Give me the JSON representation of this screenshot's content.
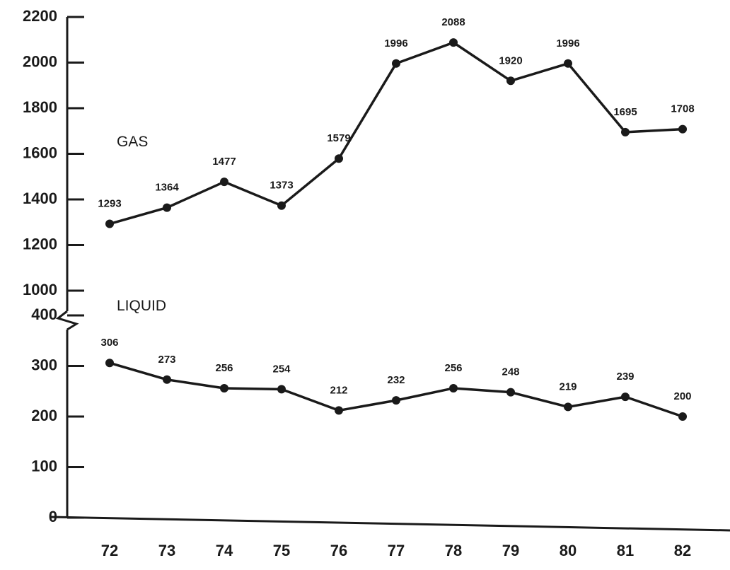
{
  "chart_data": {
    "type": "line",
    "categories": [
      "72",
      "73",
      "74",
      "75",
      "76",
      "77",
      "78",
      "79",
      "80",
      "81",
      "82"
    ],
    "series": [
      {
        "name": "GAS",
        "color": "#1a1a1a",
        "axis": "y2",
        "values": [
          1293,
          1364,
          1477,
          1373,
          1579,
          1996,
          2088,
          1920,
          1996,
          1695,
          1708
        ]
      },
      {
        "name": "LIQUID",
        "color": "#1a1a1a",
        "values": [
          306,
          273,
          256,
          254,
          212,
          232,
          256,
          248,
          219,
          239,
          200
        ]
      }
    ],
    "ylim": [
      0,
      400
    ],
    "yticks": [
      0,
      100,
      200,
      300,
      400
    ],
    "y2lim": [
      1000,
      2200
    ],
    "y2ticks": [
      1000,
      1200,
      1400,
      1600,
      1800,
      2000,
      2200
    ]
  }
}
